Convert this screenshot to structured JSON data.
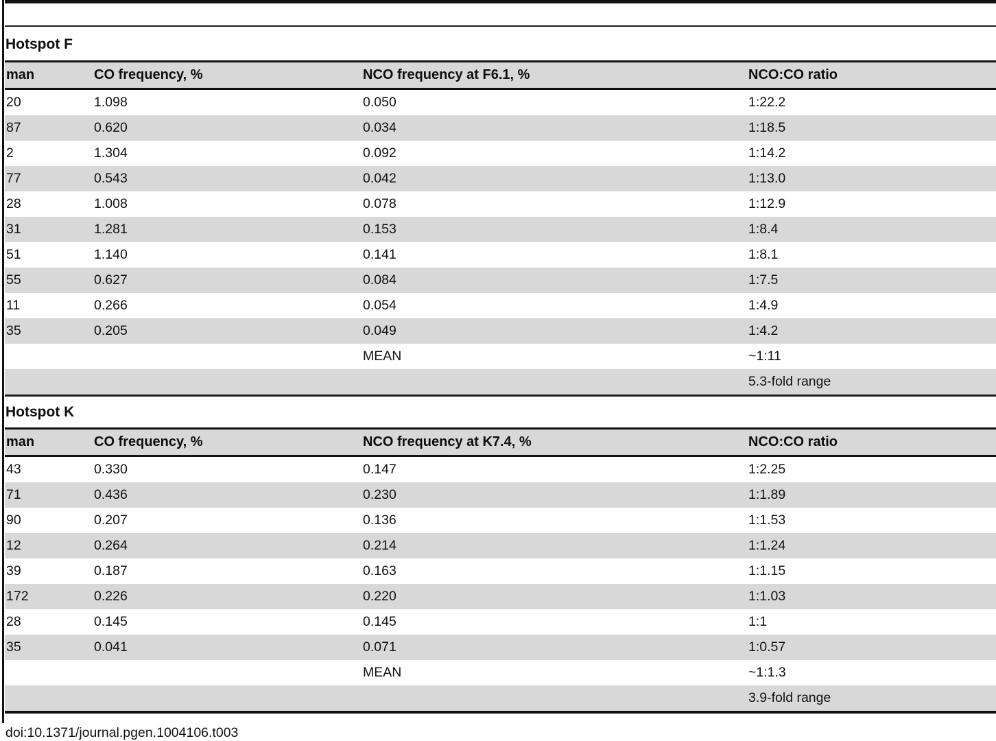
{
  "page": {
    "doi": "doi:10.1371/journal.pgen.1004106.t003"
  },
  "colors": {
    "zebra_row_gray": "#d8d8d8",
    "rule_black": "#111111",
    "background": "#ffffff"
  },
  "tables": [
    {
      "section_title": "Hotspot F",
      "columns": [
        "man",
        "CO frequency, %",
        "NCO frequency at F6.1, %",
        "NCO:CO ratio"
      ],
      "rows": [
        [
          "20",
          "1.098",
          "0.050",
          "1:22.2"
        ],
        [
          "87",
          "0.620",
          "0.034",
          "1:18.5"
        ],
        [
          "2",
          "1.304",
          "0.092",
          "1:14.2"
        ],
        [
          "77",
          "0.543",
          "0.042",
          "1:13.0"
        ],
        [
          "28",
          "1.008",
          "0.078",
          "1:12.9"
        ],
        [
          "31",
          "1.281",
          "0.153",
          "1:8.4"
        ],
        [
          "51",
          "1.140",
          "0.141",
          "1:8.1"
        ],
        [
          "55",
          "0.627",
          "0.084",
          "1:7.5"
        ],
        [
          "11",
          "0.266",
          "0.054",
          "1:4.9"
        ],
        [
          "35",
          "0.205",
          "0.049",
          "1:4.2"
        ],
        [
          "",
          "",
          "MEAN",
          "~1:11"
        ],
        [
          "",
          "",
          "",
          "5.3-fold range"
        ]
      ]
    },
    {
      "section_title": "Hotspot K",
      "columns": [
        "man",
        "CO frequency, %",
        "NCO frequency at K7.4, %",
        "NCO:CO ratio"
      ],
      "rows": [
        [
          "43",
          "0.330",
          "0.147",
          "1:2.25"
        ],
        [
          "71",
          "0.436",
          "0.230",
          "1:1.89"
        ],
        [
          "90",
          "0.207",
          "0.136",
          "1:1.53"
        ],
        [
          "12",
          "0.264",
          "0.214",
          "1:1.24"
        ],
        [
          "39",
          "0.187",
          "0.163",
          "1:1.15"
        ],
        [
          "172",
          "0.226",
          "0.220",
          "1:1.03"
        ],
        [
          "28",
          "0.145",
          "0.145",
          "1:1"
        ],
        [
          "35",
          "0.041",
          "0.071",
          "1:0.57"
        ],
        [
          "",
          "",
          "MEAN",
          "~1:1.3"
        ],
        [
          "",
          "",
          "",
          "3.9-fold range"
        ]
      ]
    }
  ]
}
